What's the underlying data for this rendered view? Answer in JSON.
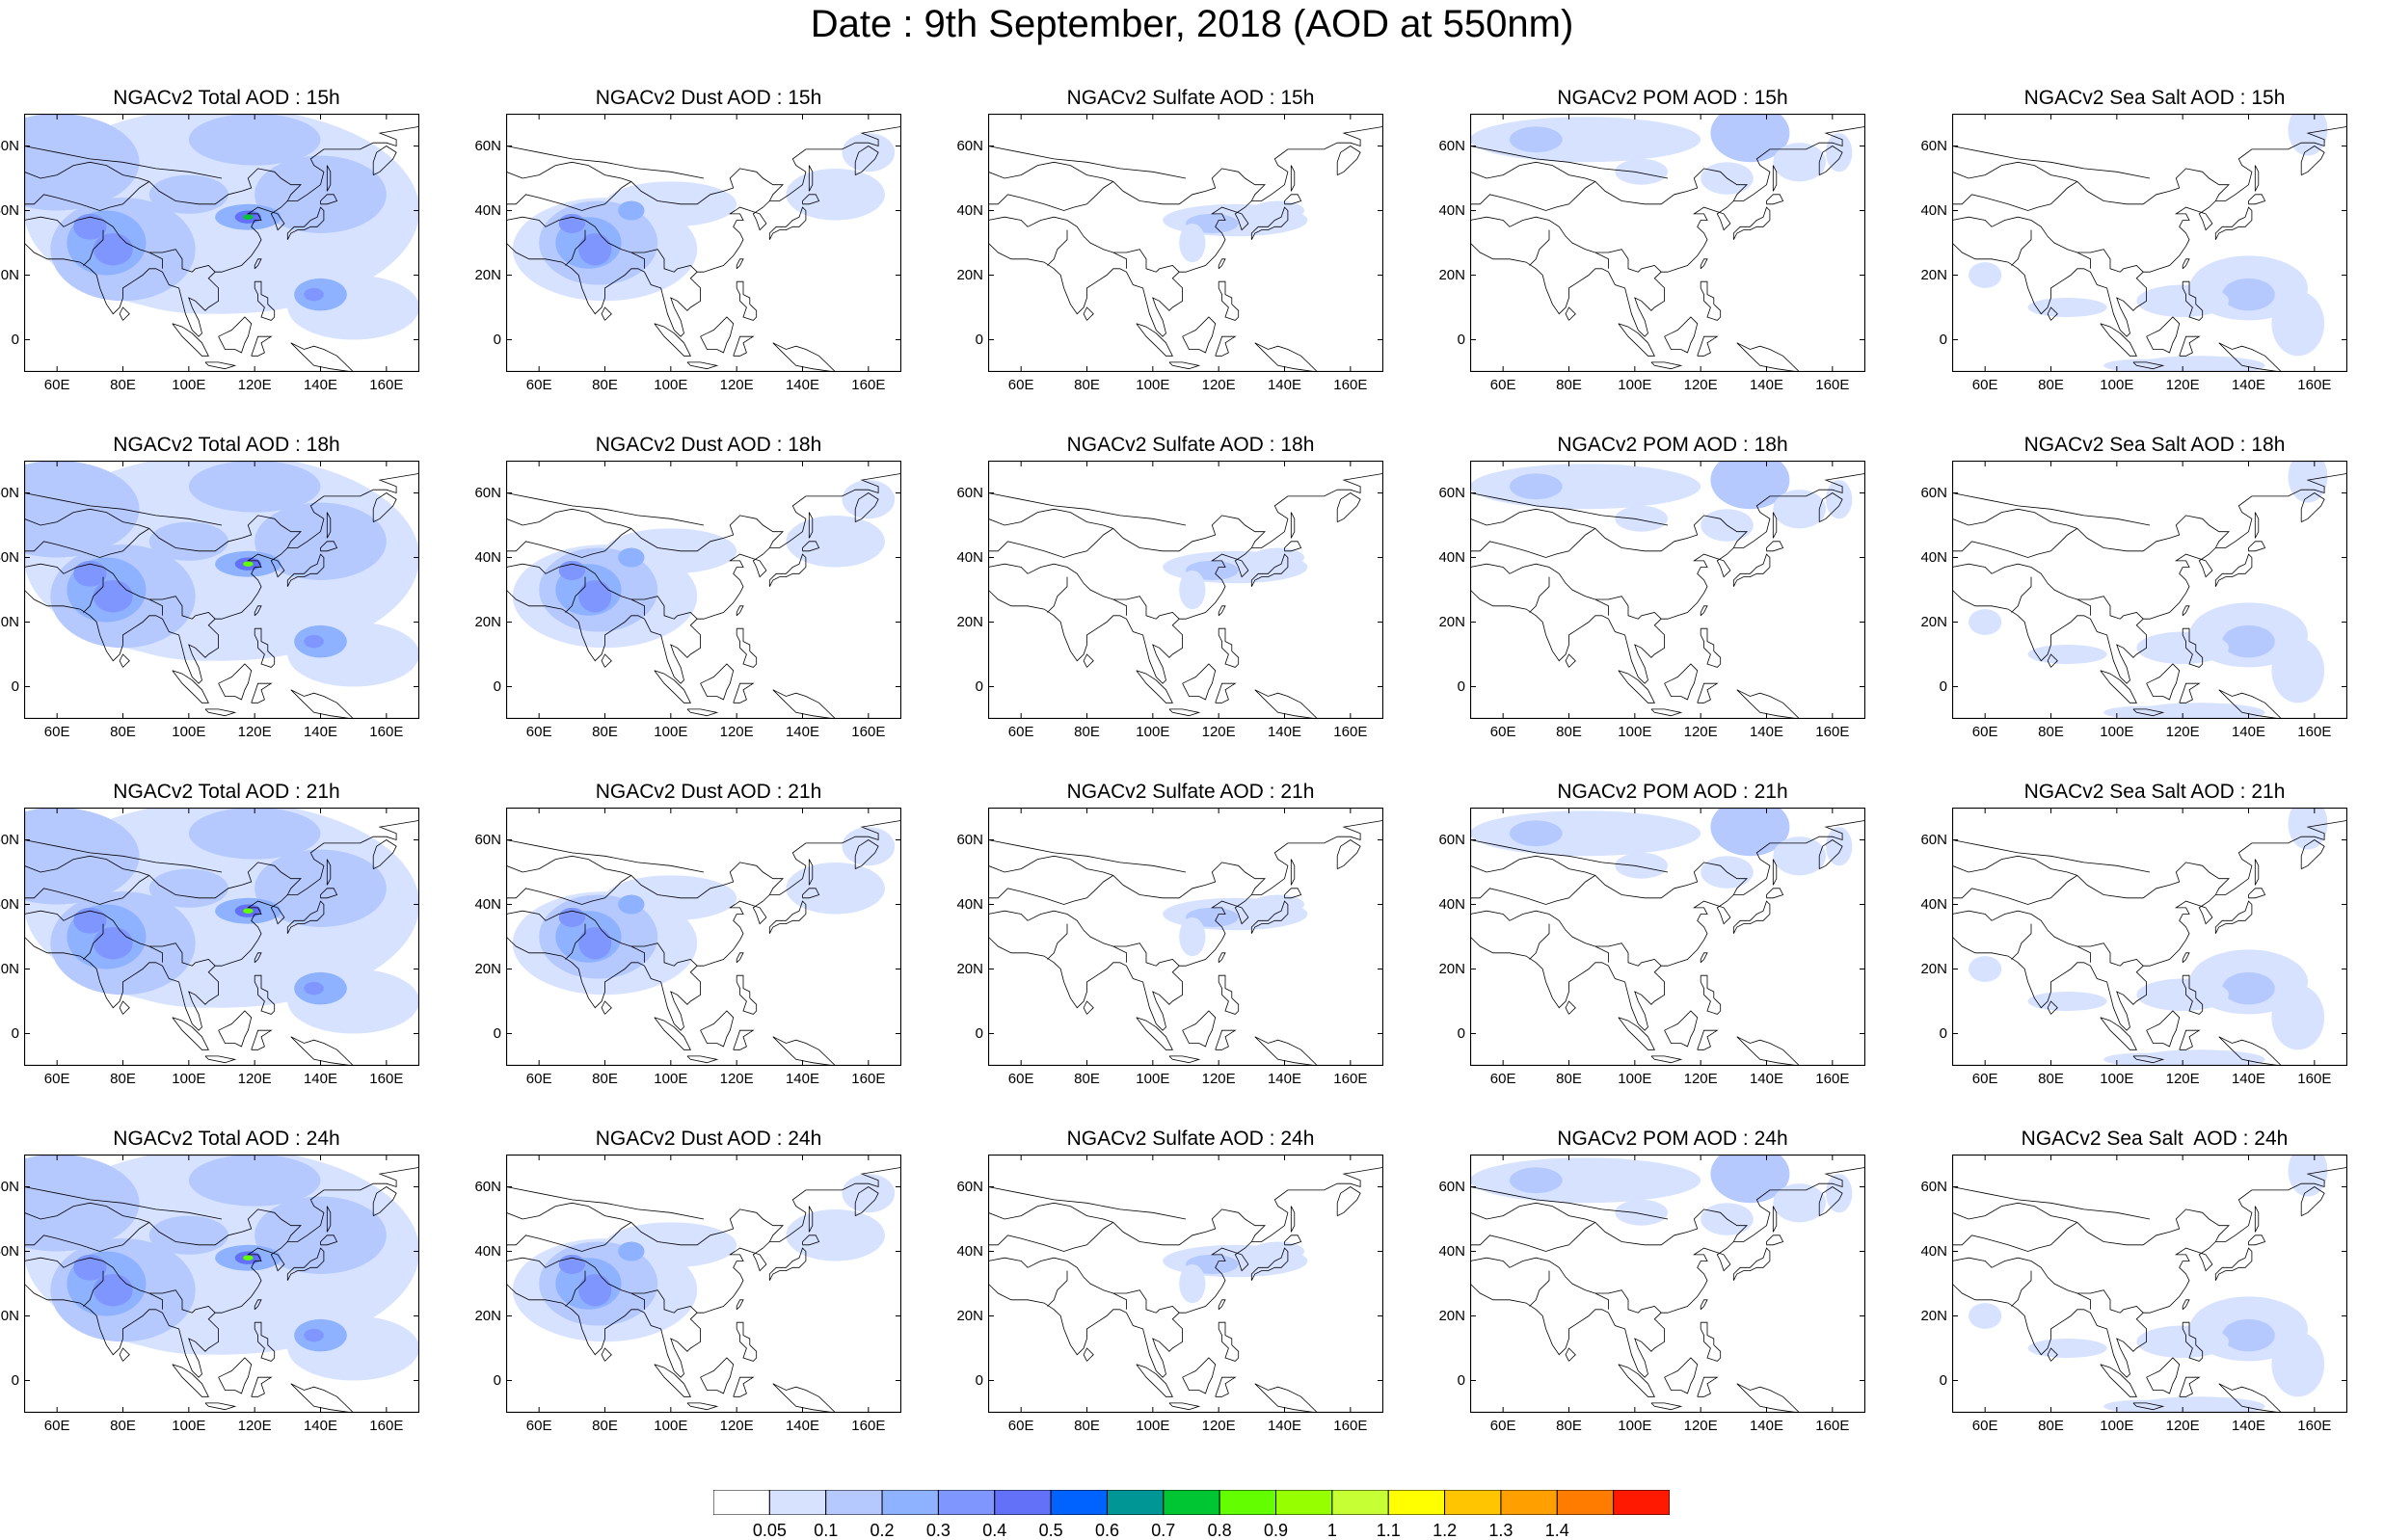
{
  "title": "Date : 9th September, 2018 (AOD at 550nm)",
  "latitude_labels": [
    "60N",
    "40N",
    "20N",
    "0"
  ],
  "longitude_labels": [
    "60E",
    "80E",
    "100E",
    "120E",
    "140E",
    "160E"
  ],
  "colorbar": {
    "colors": [
      "#ffffff",
      "#d6e2ff",
      "#b5c9ff",
      "#8eb2ff",
      "#7f96ff",
      "#6370f8",
      "#0063ff",
      "#009696",
      "#00c633",
      "#63ff00",
      "#96ff00",
      "#c6ff33",
      "#ffff00",
      "#ffc600",
      "#ffa000",
      "#ff7c00",
      "#ff1900"
    ],
    "labels": [
      "0.05",
      "0.1",
      "0.2",
      "0.3",
      "0.4",
      "0.5",
      "0.6",
      "0.7",
      "0.8",
      "0.9",
      "1",
      "1.1",
      "1.2",
      "1.3",
      "1.4"
    ]
  },
  "panels": [
    {
      "title": "NGACv2 Total AOD : 15h",
      "species": "total"
    },
    {
      "title": "NGACv2 Dust AOD : 15h",
      "species": "dust"
    },
    {
      "title": "NGACv2 Sulfate AOD : 15h",
      "species": "sulfate"
    },
    {
      "title": "NGACv2 POM AOD : 15h",
      "species": "pom"
    },
    {
      "title": "NGACv2 Sea Salt AOD : 15h",
      "species": "seasalt"
    },
    {
      "title": "NGACv2 Total AOD : 18h",
      "species": "total"
    },
    {
      "title": "NGACv2 Dust AOD : 18h",
      "species": "dust"
    },
    {
      "title": "NGACv2 Sulfate AOD : 18h",
      "species": "sulfate"
    },
    {
      "title": "NGACv2 POM AOD : 18h",
      "species": "pom"
    },
    {
      "title": "NGACv2 Sea Salt AOD : 18h",
      "species": "seasalt"
    },
    {
      "title": "NGACv2 Total AOD : 21h",
      "species": "total"
    },
    {
      "title": "NGACv2 Dust AOD : 21h",
      "species": "dust"
    },
    {
      "title": "NGACv2 Sulfate AOD : 21h",
      "species": "sulfate"
    },
    {
      "title": "NGACv2 POM AOD : 21h",
      "species": "pom"
    },
    {
      "title": "NGACv2 Sea Salt AOD : 21h",
      "species": "seasalt"
    },
    {
      "title": "NGACv2 Total AOD : 24h",
      "species": "total"
    },
    {
      "title": "NGACv2 Dust AOD : 24h",
      "species": "dust"
    },
    {
      "title": "NGACv2 Sulfate AOD : 24h",
      "species": "sulfate"
    },
    {
      "title": "NGACv2 POM AOD : 24h",
      "species": "pom"
    },
    {
      "title": "NGACv2 Sea Salt  AOD : 24h",
      "species": "seasalt"
    }
  ]
}
